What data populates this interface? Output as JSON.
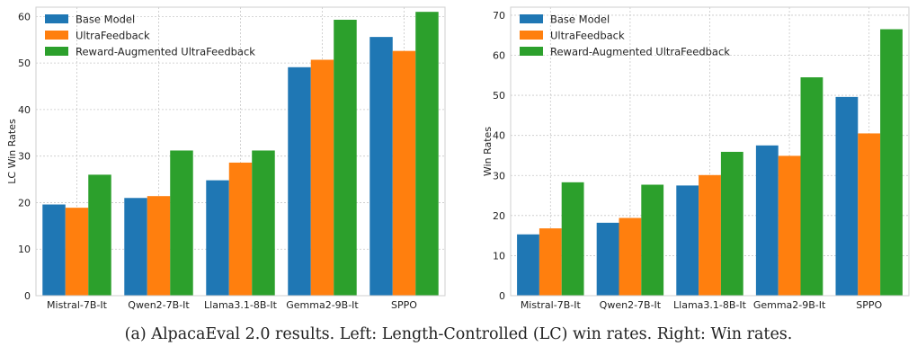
{
  "colors": {
    "base": "#1f77b4",
    "uf": "#ff7f0e",
    "ruf": "#2ca02c",
    "grid": "#c8c8c8",
    "spine": "#cfcfcf"
  },
  "caption": "(a) AlpacaEval 2.0 results. Left: Length-Controlled (LC) win rates. Right: Win rates.",
  "chart_data": [
    {
      "type": "bar",
      "ylabel": "LC Win Rates",
      "ylim": [
        0,
        62
      ],
      "yticks": [
        0,
        10,
        20,
        30,
        40,
        50,
        60
      ],
      "grid": true,
      "legend_position": "top-left",
      "categories": [
        "Mistral-7B-It",
        "Qwen2-7B-It",
        "Llama3.1-8B-It",
        "Gemma2-9B-It",
        "SPPO"
      ],
      "series": [
        {
          "name": "Base Model",
          "color_key": "base",
          "values": [
            19.6,
            21.0,
            24.8,
            49.1,
            55.6
          ]
        },
        {
          "name": "UltraFeedback",
          "color_key": "uf",
          "values": [
            18.9,
            21.4,
            28.6,
            50.7,
            52.6
          ]
        },
        {
          "name": "Reward-Augmented UltraFeedback",
          "color_key": "ruf",
          "values": [
            26.0,
            31.2,
            31.2,
            59.3,
            61.0
          ]
        }
      ]
    },
    {
      "type": "bar",
      "ylabel": "Win Rates",
      "ylim": [
        0,
        72
      ],
      "yticks": [
        0,
        10,
        20,
        30,
        40,
        50,
        60,
        70
      ],
      "grid": true,
      "legend_position": "top-left",
      "categories": [
        "Mistral-7B-It",
        "Qwen2-7B-It",
        "Llama3.1-8B-It",
        "Gemma2-9B-It",
        "SPPO"
      ],
      "series": [
        {
          "name": "Base Model",
          "color_key": "base",
          "values": [
            15.3,
            18.2,
            27.5,
            37.5,
            49.6
          ]
        },
        {
          "name": "UltraFeedback",
          "color_key": "uf",
          "values": [
            16.8,
            19.4,
            30.1,
            34.9,
            40.5
          ]
        },
        {
          "name": "Reward-Augmented UltraFeedback",
          "color_key": "ruf",
          "values": [
            28.3,
            27.7,
            35.9,
            54.5,
            66.5
          ]
        }
      ]
    }
  ]
}
